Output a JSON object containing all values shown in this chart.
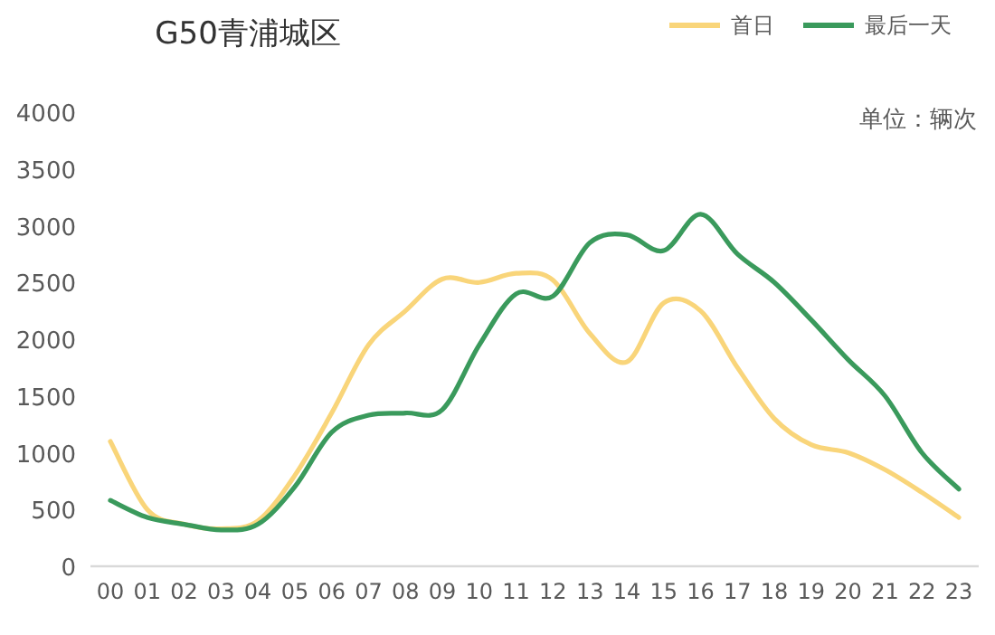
{
  "chart_data": {
    "type": "line",
    "title": "G50青浦城区",
    "annotations": [
      "单位：辆次"
    ],
    "categories": [
      "00",
      "01",
      "02",
      "03",
      "04",
      "05",
      "06",
      "07",
      "08",
      "09",
      "10",
      "11",
      "12",
      "13",
      "14",
      "15",
      "16",
      "17",
      "18",
      "19",
      "20",
      "21",
      "22",
      "23"
    ],
    "series": [
      {
        "name": "首日",
        "color": "#f9d57a",
        "values": [
          1100,
          500,
          370,
          330,
          400,
          800,
          1350,
          1950,
          2250,
          2530,
          2500,
          2580,
          2520,
          2050,
          1800,
          2320,
          2250,
          1750,
          1300,
          1070,
          1000,
          850,
          650,
          430
        ]
      },
      {
        "name": "最后一天",
        "color": "#3a9a5c",
        "values": [
          580,
          430,
          370,
          320,
          370,
          700,
          1180,
          1330,
          1350,
          1380,
          1950,
          2400,
          2380,
          2850,
          2920,
          2780,
          3100,
          2750,
          2500,
          2170,
          1820,
          1500,
          1000,
          680
        ]
      }
    ],
    "ylim": [
      0,
      4000
    ],
    "yticks": [
      0,
      500,
      1000,
      1500,
      2000,
      2500,
      3000,
      3500,
      4000
    ],
    "legend": "top right",
    "marker": "none",
    "line_style": "solid"
  }
}
